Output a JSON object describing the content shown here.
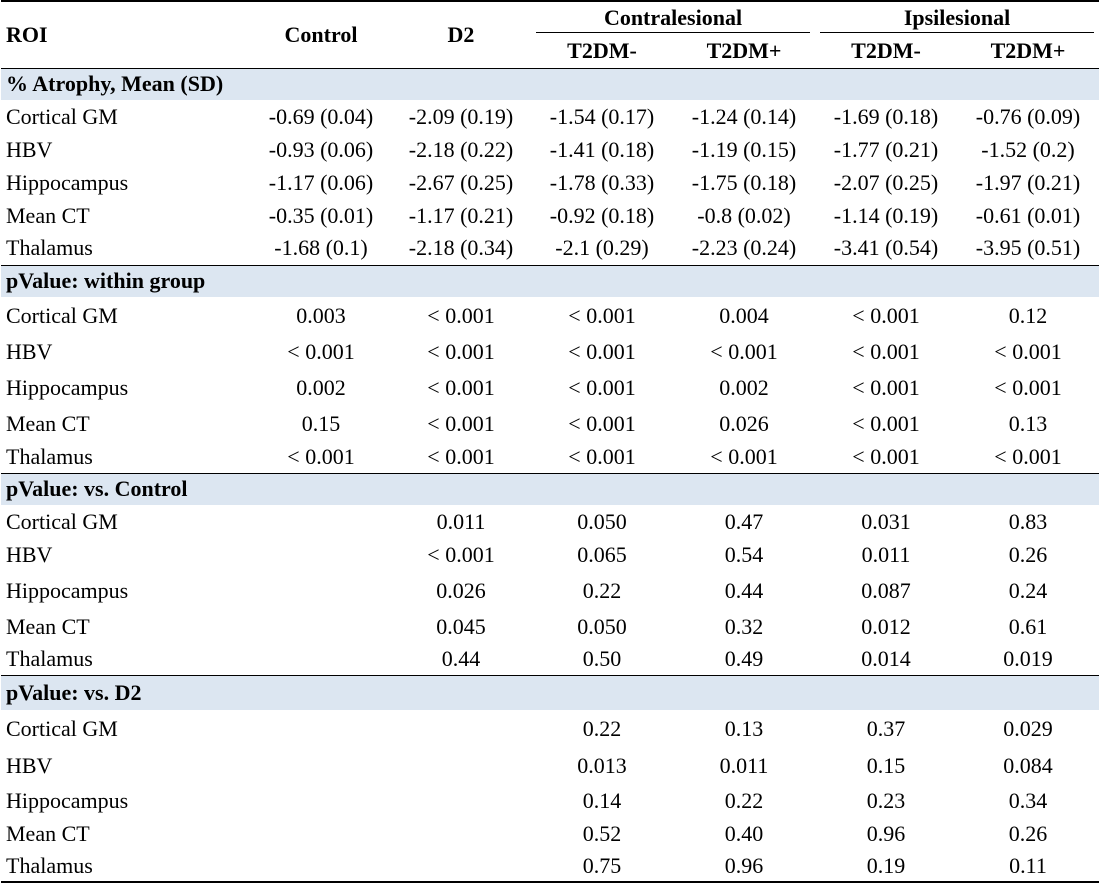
{
  "header": {
    "roi": "ROI",
    "control": "Control",
    "d2": "D2",
    "groups": [
      {
        "label": "Contralesional",
        "columns": [
          "T2DM-",
          "T2DM+"
        ]
      },
      {
        "label": "Ipsilesional",
        "columns": [
          "T2DM-",
          "T2DM+"
        ]
      }
    ]
  },
  "sections": [
    {
      "title": "% Atrophy, Mean (SD)",
      "rows": [
        {
          "label": "Cortical GM",
          "cells": [
            "-0.69 (0.04)",
            "-2.09 (0.19)",
            "-1.54 (0.17)",
            "-1.24 (0.14)",
            "-1.69 (0.18)",
            "-0.76 (0.09)"
          ]
        },
        {
          "label": "HBV",
          "cells": [
            "-0.93 (0.06)",
            "-2.18 (0.22)",
            "-1.41 (0.18)",
            "-1.19 (0.15)",
            "-1.77 (0.21)",
            "-1.52 (0.2)"
          ]
        },
        {
          "label": "Hippocampus",
          "cells": [
            "-1.17 (0.06)",
            "-2.67 (0.25)",
            "-1.78 (0.33)",
            "-1.75 (0.18)",
            "-2.07 (0.25)",
            "-1.97 (0.21)"
          ]
        },
        {
          "label": "Mean CT",
          "cells": [
            "-0.35 (0.01)",
            "-1.17 (0.21)",
            "-0.92 (0.18)",
            "-0.8 (0.02)",
            "-1.14 (0.19)",
            "-0.61 (0.01)"
          ]
        },
        {
          "label": "Thalamus",
          "cells": [
            "-1.68 (0.1)",
            "-2.18 (0.34)",
            "-2.1 (0.29)",
            "-2.23 (0.24)",
            "-3.41 (0.54)",
            "-3.95 (0.51)"
          ]
        }
      ]
    },
    {
      "title": "pValue: within group",
      "rows": [
        {
          "label": "Cortical GM",
          "cells": [
            "0.003",
            "< 0.001",
            "< 0.001",
            "0.004",
            "< 0.001",
            "0.12"
          ]
        },
        {
          "label": "HBV",
          "cells": [
            "< 0.001",
            "< 0.001",
            "< 0.001",
            "< 0.001",
            "< 0.001",
            "< 0.001"
          ]
        },
        {
          "label": "Hippocampus",
          "cells": [
            "0.002",
            "< 0.001",
            "< 0.001",
            "0.002",
            "< 0.001",
            "< 0.001"
          ]
        },
        {
          "label": "Mean CT",
          "cells": [
            "0.15",
            "< 0.001",
            "< 0.001",
            "0.026",
            "< 0.001",
            "0.13"
          ]
        },
        {
          "label": "Thalamus",
          "cells": [
            "< 0.001",
            "< 0.001",
            "< 0.001",
            "< 0.001",
            "< 0.001",
            "< 0.001"
          ]
        }
      ]
    },
    {
      "title": "pValue: vs. Control",
      "rows": [
        {
          "label": "Cortical GM",
          "cells": [
            null,
            "0.011",
            "0.050",
            "0.47",
            "0.031",
            "0.83"
          ]
        },
        {
          "label": "HBV",
          "cells": [
            null,
            "< 0.001",
            "0.065",
            "0.54",
            "0.011",
            "0.26"
          ]
        },
        {
          "label": "Hippocampus",
          "cells": [
            null,
            "0.026",
            "0.22",
            "0.44",
            "0.087",
            "0.24"
          ]
        },
        {
          "label": "Mean CT",
          "cells": [
            null,
            "0.045",
            "0.050",
            "0.32",
            "0.012",
            "0.61"
          ]
        },
        {
          "label": "Thalamus",
          "cells": [
            null,
            "0.44",
            "0.50",
            "0.49",
            "0.014",
            "0.019"
          ]
        }
      ]
    },
    {
      "title": "pValue: vs. D2",
      "rows": [
        {
          "label": "Cortical GM",
          "cells": [
            null,
            null,
            "0.22",
            "0.13",
            "0.37",
            "0.029"
          ]
        },
        {
          "label": "HBV",
          "cells": [
            null,
            null,
            "0.013",
            "0.011",
            "0.15",
            "0.084"
          ]
        },
        {
          "label": "Hippocampus",
          "cells": [
            null,
            null,
            "0.14",
            "0.22",
            "0.23",
            "0.34"
          ]
        },
        {
          "label": "Mean CT",
          "cells": [
            null,
            null,
            "0.52",
            "0.40",
            "0.96",
            "0.26"
          ]
        },
        {
          "label": "Thalamus",
          "cells": [
            null,
            null,
            "0.75",
            "0.96",
            "0.19",
            "0.11"
          ]
        }
      ]
    }
  ]
}
